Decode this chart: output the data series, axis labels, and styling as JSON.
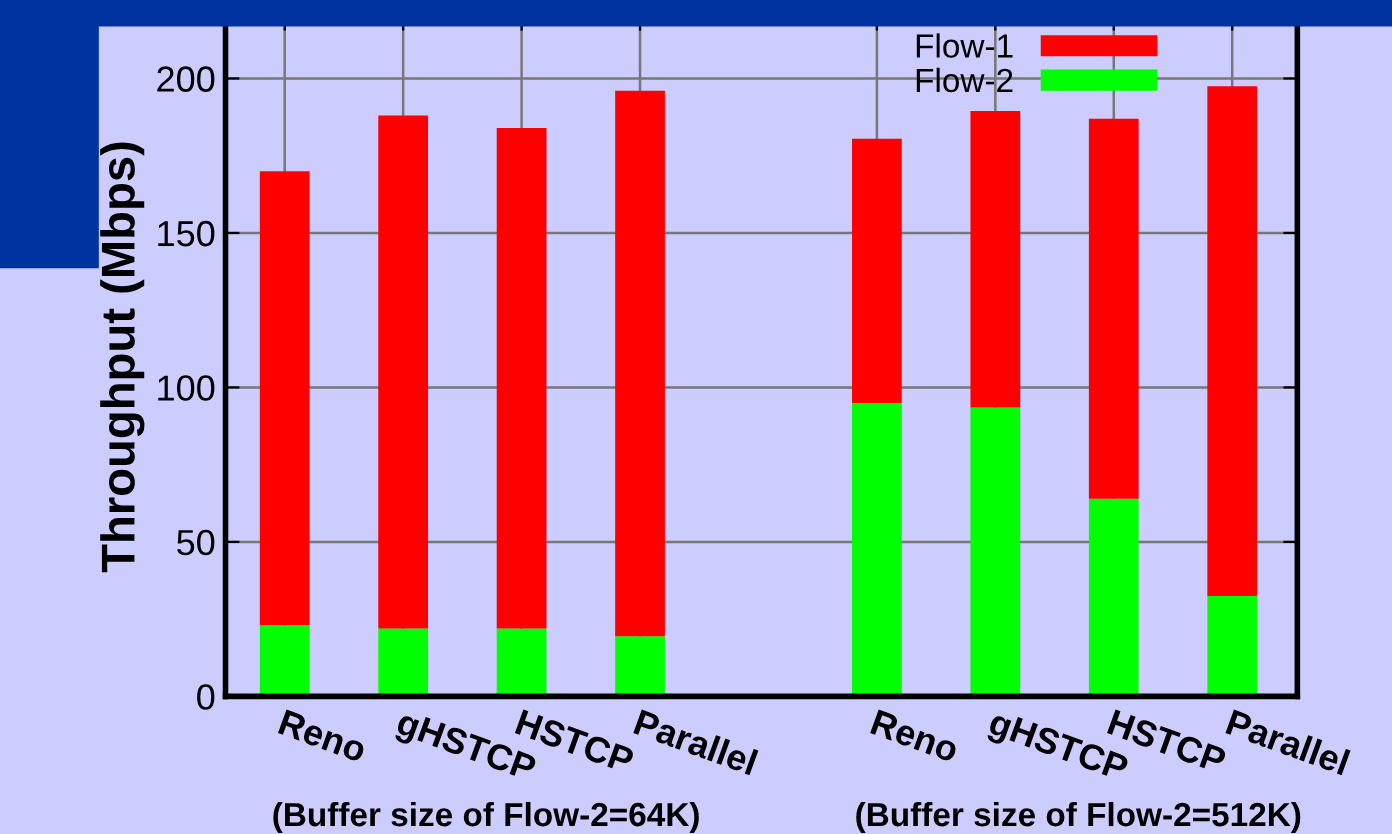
{
  "chart_data": {
    "type": "bar",
    "stacked": true,
    "ylabel": "Throughput (Mbps)",
    "categories": [
      "Reno",
      "gHSTCP",
      "HSTCP",
      "Parallel",
      null,
      "Reno",
      "gHSTCP",
      "HSTCP",
      "Parallel"
    ],
    "series": [
      {
        "name": "Flow-2",
        "color": "#00ff00",
        "values": [
          23,
          22,
          22,
          19.5,
          null,
          95,
          93.5,
          64,
          32.5
        ]
      },
      {
        "name": "Flow-1",
        "color": "#ff0000",
        "values": [
          147,
          166,
          162,
          176.5,
          null,
          85.5,
          96,
          123,
          165
        ]
      }
    ],
    "ylim": [
      0,
      220
    ],
    "yticks": [
      0,
      50,
      100,
      150,
      200
    ],
    "grid": true,
    "legend": "top right",
    "annotations": [
      "(Buffer size of Flow-2=64K)",
      "(Buffer size of Flow-2=512K)"
    ]
  }
}
